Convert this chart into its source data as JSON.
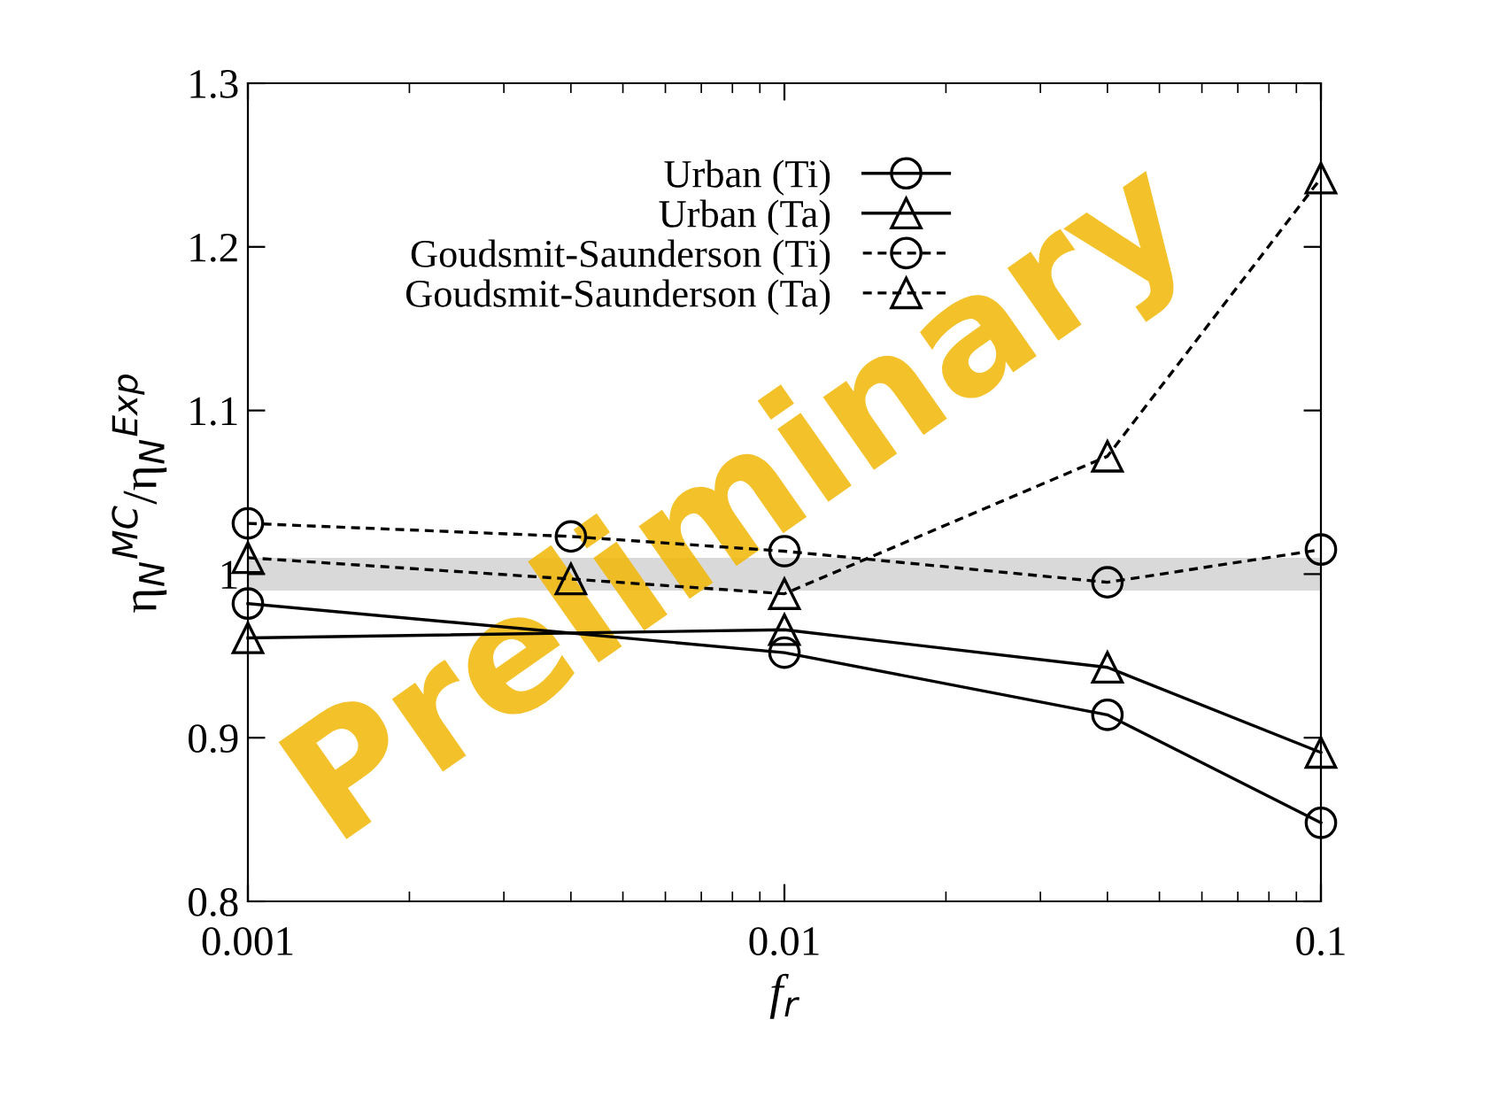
{
  "chart_data": {
    "type": "line",
    "xlabel": "f$_{r}$",
    "ylabel": "η$_{N}$$^{MC}$/η$_{N}$$^{Exp}$",
    "x": [
      0.001,
      0.004,
      0.01,
      0.04,
      0.1
    ],
    "log": "x",
    "xlim": [
      0.001,
      0.1
    ],
    "xticks": [
      0.001,
      0.01,
      0.1
    ],
    "ylim": [
      0.8,
      1.3
    ],
    "yticks": [
      0.8,
      0.9,
      1,
      1.1,
      1.2,
      1.3
    ],
    "grid": false,
    "legend": "top",
    "series": [
      {
        "name": "Urban (Ti)",
        "color": "#000000",
        "marker": "circle",
        "line_style": "solid",
        "x": [
          0.001,
          0.01,
          0.04,
          0.1
        ],
        "values": [
          0.982,
          0.952,
          0.914,
          0.848
        ]
      },
      {
        "name": "Urban (Ta)",
        "color": "#000000",
        "marker": "triangle",
        "line_style": "solid",
        "x": [
          0.001,
          0.01,
          0.04,
          0.1
        ],
        "values": [
          0.961,
          0.966,
          0.943,
          0.891
        ]
      },
      {
        "name": "Goudsmit-Saunderson (Ti)",
        "color": "#000000",
        "marker": "circle",
        "line_style": "dashed",
        "values": [
          1.031,
          1.023,
          1.014,
          0.995,
          1.015
        ]
      },
      {
        "name": "Goudsmit-Saunderson (Ta)",
        "color": "#000000",
        "marker": "triangle",
        "line_style": "dashed",
        "values": [
          1.01,
          0.997,
          0.988,
          1.072,
          1.242
        ]
      }
    ],
    "bands": [
      {
        "axis": "y",
        "from": 0.99,
        "to": 1.01,
        "color": "#d9d9d9"
      }
    ],
    "annotations": [
      "Preliminary"
    ]
  }
}
